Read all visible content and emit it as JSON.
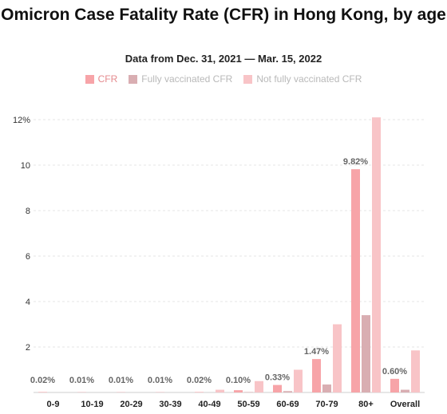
{
  "chart_data": {
    "type": "bar",
    "title": "Omicron Case Fatality Rate (CFR) in Hong Kong, by age",
    "subtitle": "Data from Dec. 31, 2021 — Mar. 15, 2022",
    "categories": [
      "0-9",
      "10-19",
      "20-29",
      "30-39",
      "40-49",
      "50-59",
      "60-69",
      "70-79",
      "80+",
      "Overall"
    ],
    "series": [
      {
        "name": "CFR",
        "color": "#f7a4a8",
        "values": [
          0.02,
          0.01,
          0.01,
          0.01,
          0.02,
          0.1,
          0.33,
          1.47,
          9.82,
          0.6
        ]
      },
      {
        "name": "Fully vaccinated CFR",
        "color": "#d9aeb2",
        "values": [
          0.0,
          0.0,
          0.0,
          0.0,
          0.0,
          0.02,
          0.06,
          0.35,
          3.4,
          0.12
        ]
      },
      {
        "name": "Not fully vaccinated CFR",
        "color": "#f8c4c7",
        "values": [
          0.0,
          0.0,
          0.0,
          0.0,
          0.12,
          0.5,
          1.0,
          3.0,
          12.1,
          1.85
        ]
      }
    ],
    "data_labels": [
      "0.02%",
      "0.01%",
      "0.01%",
      "0.01%",
      "0.02%",
      "0.10%",
      "0.33%",
      "1.47%",
      "9.82%",
      "0.60%"
    ],
    "yticks": [
      {
        "value": 2,
        "label": "2"
      },
      {
        "value": 4,
        "label": "4"
      },
      {
        "value": 6,
        "label": "6"
      },
      {
        "value": 8,
        "label": "8"
      },
      {
        "value": 10,
        "label": "10"
      },
      {
        "value": 12,
        "label": "12%"
      }
    ],
    "ylim": [
      0,
      12
    ],
    "grid": true,
    "legend_position": "top-center",
    "xlabel": "",
    "ylabel": ""
  }
}
